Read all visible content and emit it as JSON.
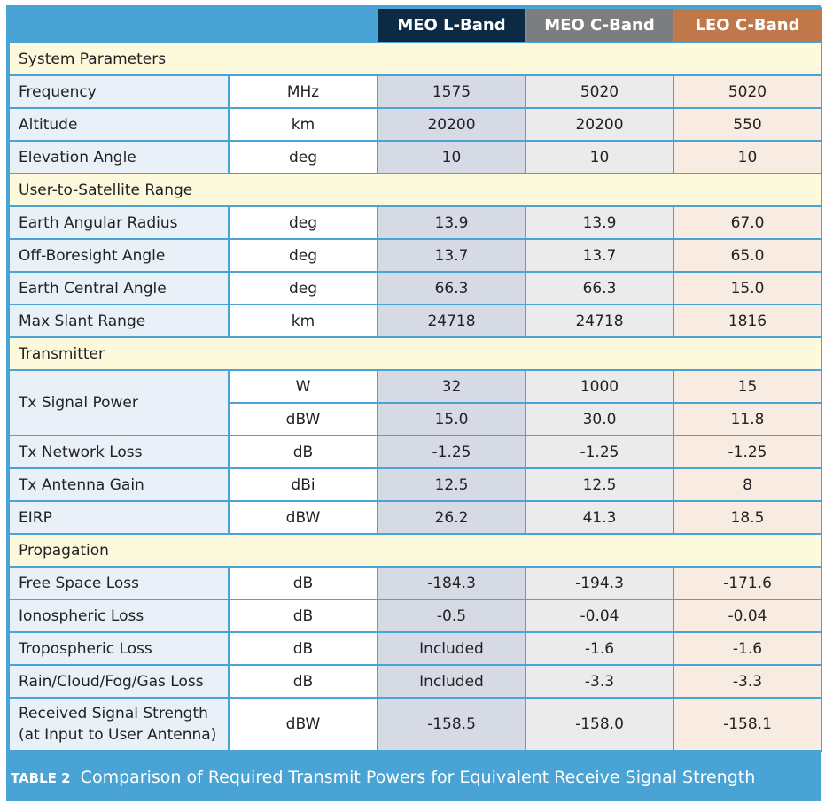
{
  "header": {
    "col1": "MEO L-Band",
    "col2": "MEO C-Band",
    "col3": "LEO C-Band"
  },
  "sections": {
    "system": "System Parameters",
    "range": "User-to-Satellite Range",
    "transmitter": "Transmitter",
    "propagation": "Propagation"
  },
  "rows": {
    "frequency": {
      "label": "Frequency",
      "unit": "MHz",
      "v1": "1575",
      "v2": "5020",
      "v3": "5020"
    },
    "altitude": {
      "label": "Altitude",
      "unit": "km",
      "v1": "20200",
      "v2": "20200",
      "v3": "550"
    },
    "elevation": {
      "label": "Elevation Angle",
      "unit": "deg",
      "v1": "10",
      "v2": "10",
      "v3": "10"
    },
    "earth_radius": {
      "label": "Earth Angular Radius",
      "unit": "deg",
      "v1": "13.9",
      "v2": "13.9",
      "v3": "67.0"
    },
    "off_boresight": {
      "label": "Off-Boresight Angle",
      "unit": "deg",
      "v1": "13.7",
      "v2": "13.7",
      "v3": "65.0"
    },
    "central_angle": {
      "label": "Earth Central Angle",
      "unit": "deg",
      "v1": "66.3",
      "v2": "66.3",
      "v3": "15.0"
    },
    "slant_range": {
      "label": "Max Slant Range",
      "unit": "km",
      "v1": "24718",
      "v2": "24718",
      "v3": "1816"
    },
    "tx_power_w": {
      "label": "Tx Signal Power",
      "unit": "W",
      "v1": "32",
      "v2": "1000",
      "v3": "15"
    },
    "tx_power_dbw": {
      "unit": "dBW",
      "v1": "15.0",
      "v2": "30.0",
      "v3": "11.8"
    },
    "tx_net_loss": {
      "label": "Tx Network Loss",
      "unit": "dB",
      "v1": "-1.25",
      "v2": "-1.25",
      "v3": "-1.25"
    },
    "tx_ant_gain": {
      "label": "Tx Antenna Gain",
      "unit": "dBi",
      "v1": "12.5",
      "v2": "12.5",
      "v3": "8"
    },
    "eirp": {
      "label": "EIRP",
      "unit": "dBW",
      "v1": "26.2",
      "v2": "41.3",
      "v3": "18.5"
    },
    "fspl": {
      "label": "Free Space Loss",
      "unit": "dB",
      "v1": "-184.3",
      "v2": "-194.3",
      "v3": "-171.6"
    },
    "iono": {
      "label": "Ionospheric Loss",
      "unit": "dB",
      "v1": "-0.5",
      "v2": "-0.04",
      "v3": "-0.04"
    },
    "tropo": {
      "label": "Tropospheric Loss",
      "unit": "dB",
      "v1": "Included",
      "v2": "-1.6",
      "v3": "-1.6"
    },
    "rain": {
      "label": "Rain/Cloud/Fog/Gas Loss",
      "unit": "dB",
      "v1": "Included",
      "v2": "-3.3",
      "v3": "-3.3"
    },
    "rss": {
      "label_line1": "Received Signal Strength",
      "label_line2": "(at Input to User Antenna)",
      "unit": "dBW",
      "v1": "-158.5",
      "v2": "-158.0",
      "v3": "-158.1"
    }
  },
  "caption": {
    "tag": "TABLE 2",
    "text": "Comparison of Required Transmit Powers for Equivalent Receive Signal Strength"
  },
  "colors": {
    "frame": "#4aa3d5",
    "meo_l_header": "#0d2a44",
    "meo_c_header": "#7c7d7f",
    "leo_c_header": "#c0784a",
    "section_bg": "#fdf9dc"
  }
}
